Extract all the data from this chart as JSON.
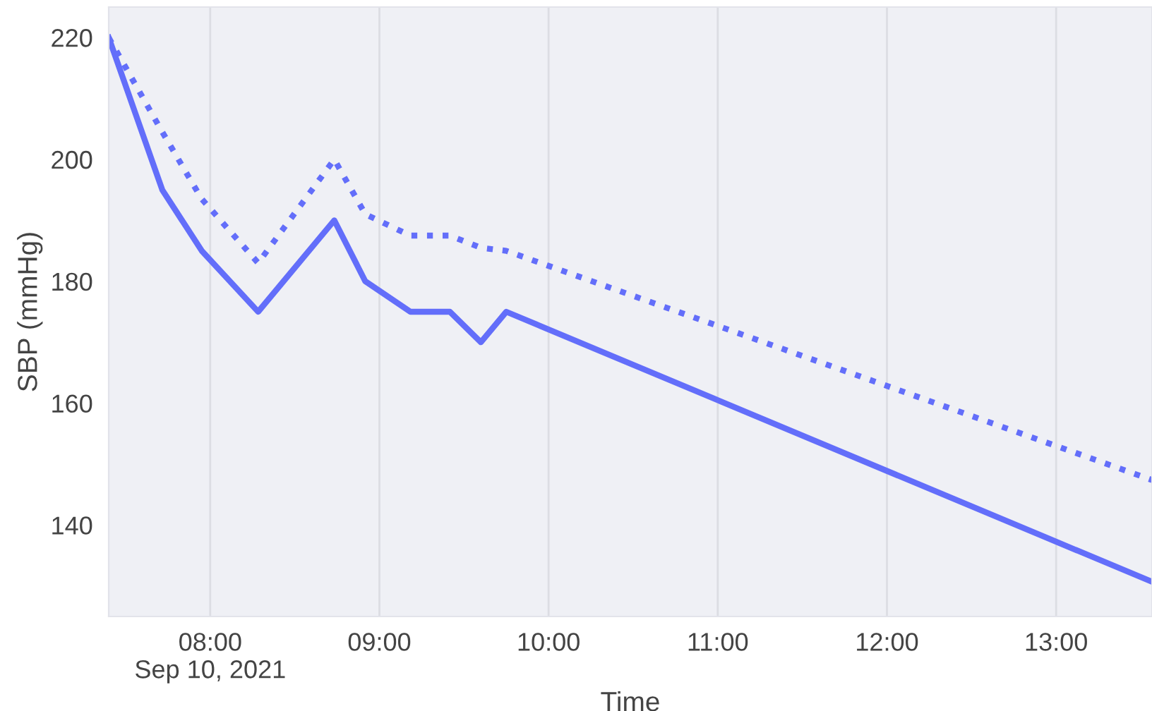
{
  "chart_data": {
    "type": "line",
    "xlabel": "Time",
    "ylabel": "SBP (mmHg)",
    "xlim": [
      "2021-09-10T07:24",
      "2021-09-10T13:34"
    ],
    "xticks": [
      {
        "value": "2021-09-10T08:00",
        "label": "08:00\nSep 10, 2021"
      },
      {
        "value": "2021-09-10T09:00",
        "label": "09:00"
      },
      {
        "value": "2021-09-10T10:00",
        "label": "10:00"
      },
      {
        "value": "2021-09-10T11:00",
        "label": "11:00"
      },
      {
        "value": "2021-09-10T12:00",
        "label": "12:00"
      },
      {
        "value": "2021-09-10T13:00",
        "label": "13:00"
      }
    ],
    "ylim": [
      125,
      225
    ],
    "yticks": [
      140,
      160,
      180,
      200,
      220
    ],
    "grid": "x",
    "legend": false,
    "series": [
      {
        "color": "#636efa",
        "line_style": "solid",
        "x": [
          "2021-09-10T07:24",
          "2021-09-10T07:43",
          "2021-09-10T07:57",
          "2021-09-10T08:17",
          "2021-09-10T08:44",
          "2021-09-10T08:55",
          "2021-09-10T09:11",
          "2021-09-10T09:25",
          "2021-09-10T09:36",
          "2021-09-10T09:45",
          "2021-09-10T13:34"
        ],
        "values": [
          220,
          195,
          185,
          175,
          190,
          180,
          175,
          175,
          170,
          175,
          130.7
        ]
      },
      {
        "color": "#636efa",
        "line_style": "dotted",
        "x": [
          "2021-09-10T07:24",
          "2021-09-10T07:43",
          "2021-09-10T07:57",
          "2021-09-10T08:17",
          "2021-09-10T08:44",
          "2021-09-10T08:55",
          "2021-09-10T09:11",
          "2021-09-10T09:25",
          "2021-09-10T09:36",
          "2021-09-10T09:45",
          "2021-09-10T13:34"
        ],
        "values": [
          220,
          204.5,
          193.5,
          183,
          200,
          191,
          187.5,
          187.5,
          185.5,
          185,
          147.4
        ]
      }
    ]
  }
}
